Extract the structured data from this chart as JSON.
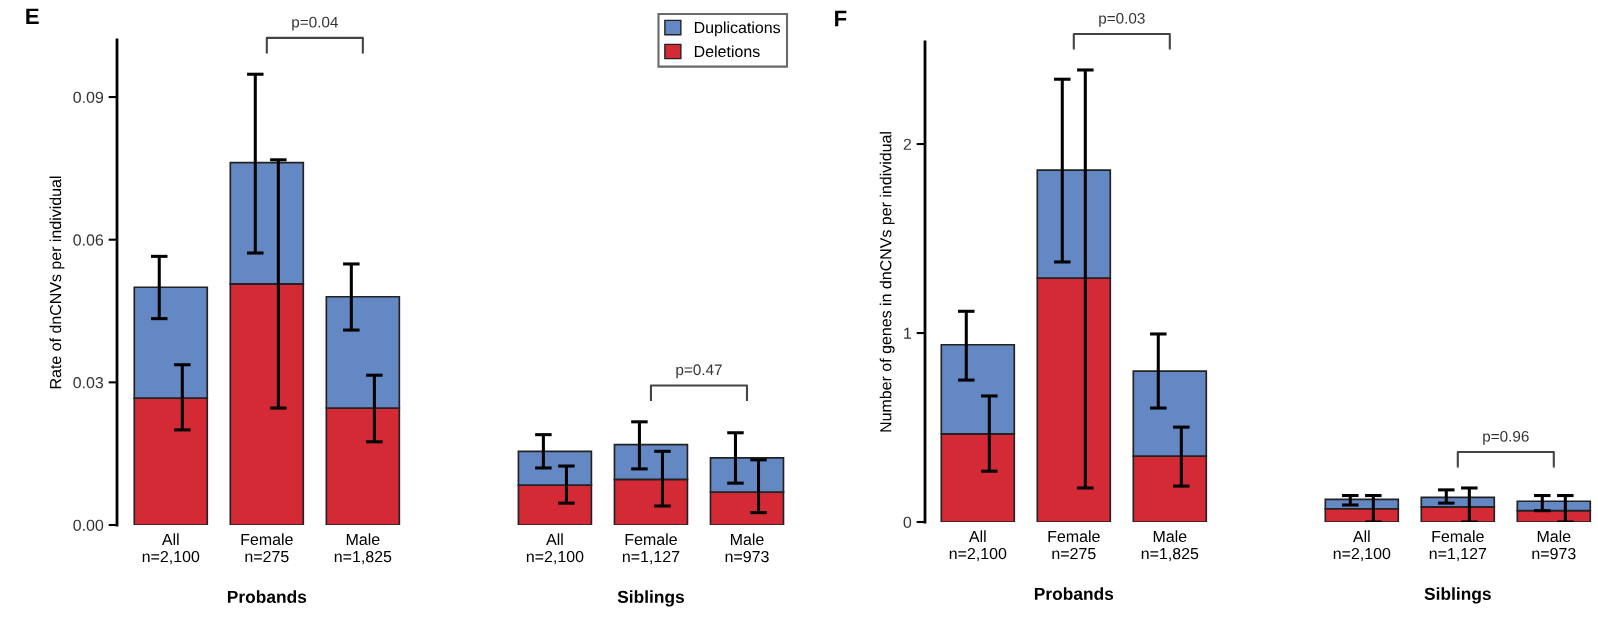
{
  "chart_data": [
    {
      "type": "bar",
      "stacked": true,
      "title": "E",
      "ylabel": "Rate of dnCNVs per individual",
      "categories": [
        "All\nn=2,100",
        "Female\nn=275",
        "Male\nn=1,825",
        null,
        "All\nn=2,100",
        "Female\nn=1,127",
        "Male\nn=973"
      ],
      "series": [
        {
          "name": "Deletions",
          "color": "#d42a35",
          "values": [
            0.0267,
            0.0507,
            0.0246,
            null,
            0.0084,
            0.0096,
            0.0069
          ],
          "errors": [
            [
              0.02,
              0.0337
            ],
            [
              0.0246,
              0.0768
            ],
            [
              0.0175,
              0.0315
            ],
            null,
            [
              0.0046,
              0.0124
            ],
            [
              0.004,
              0.0155
            ],
            [
              0.0026,
              0.0137
            ]
          ]
        },
        {
          "name": "Duplications",
          "color": "#6488c4",
          "values": [
            0.0233,
            0.0255,
            0.0234,
            null,
            0.0071,
            0.0073,
            0.0072
          ],
          "errors": [
            [
              0.0434,
              0.0565
            ],
            [
              0.0572,
              0.0948
            ],
            [
              0.041,
              0.0549
            ],
            null,
            [
              0.012,
              0.019
            ],
            [
              0.0118,
              0.0217
            ],
            [
              0.0088,
              0.0194
            ]
          ]
        }
      ],
      "ylim": [
        0,
        0.102
      ],
      "yticks": [
        {
          "value": 0,
          "label": "0.00"
        },
        {
          "value": 0.03,
          "label": "0.03"
        },
        {
          "value": 0.06,
          "label": "0.06"
        },
        {
          "value": 0.09,
          "label": "0.09"
        }
      ],
      "legend": "top right",
      "annotations": [
        "Probands",
        "p=0.04",
        "Siblings",
        "p=0.47"
      ]
    },
    {
      "type": "bar",
      "stacked": true,
      "title": "F",
      "ylabel": "Number of genes in dnCNVs per individual",
      "categories": [
        "All\nn=2,100",
        "Female\nn=275",
        "Male\nn=1,825",
        null,
        "All\nn=2,100",
        "Female\nn=1,127",
        "Male\nn=973"
      ],
      "series": [
        {
          "color": "#d42a35",
          "values": [
            0.466,
            1.291,
            0.349,
            null,
            0.07,
            0.08,
            0.06
          ],
          "errors": [
            [
              0.269,
              0.667
            ],
            [
              0.18,
              2.392
            ],
            [
              0.19,
              0.502
            ],
            null,
            [
              0.0,
              0.14
            ],
            [
              0.0,
              0.18
            ],
            [
              0.0,
              0.14
            ]
          ]
        },
        {
          "color": "#6488c4",
          "values": [
            0.472,
            0.571,
            0.449,
            null,
            0.05,
            0.05,
            0.05
          ],
          "errors": [
            [
              0.751,
              1.115
            ],
            [
              1.376,
              2.343
            ],
            [
              0.603,
              0.995
            ],
            null,
            [
              0.09,
              0.14
            ],
            [
              0.1,
              0.17
            ],
            [
              0.06,
              0.14
            ]
          ]
        }
      ],
      "ylim": [
        0,
        2.54
      ],
      "yticks": [
        0,
        1,
        2
      ],
      "annotations": [
        "Probands",
        "p=0.03",
        "Siblings",
        "p=0.96"
      ]
    }
  ]
}
